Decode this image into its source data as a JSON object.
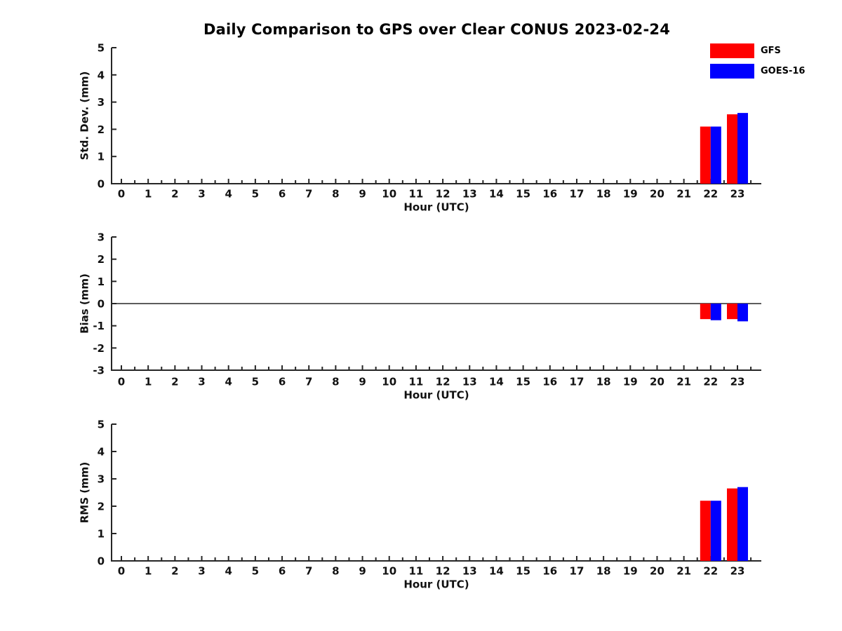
{
  "title": "Daily Comparison to GPS over Clear CONUS 2023-02-24",
  "legend": {
    "items": [
      {
        "label": "GFS",
        "color": "#ff0000"
      },
      {
        "label": "GOES-16",
        "color": "#0000ff"
      }
    ]
  },
  "colors": {
    "gfs": "#ff0000",
    "goes16": "#0000ff",
    "axis": "#262626",
    "text": "#111111"
  },
  "chart_data": [
    {
      "type": "bar",
      "name": "std-dev",
      "ylabel": "Std. Dev. (mm)",
      "xlabel": "Hour (UTC)",
      "ylim": [
        0,
        5
      ],
      "yticks": [
        0,
        1,
        2,
        3,
        4,
        5
      ],
      "grid": false,
      "zero_line": false,
      "legend_position": "top-right-outside",
      "categories": [
        0,
        1,
        2,
        3,
        4,
        5,
        6,
        7,
        8,
        9,
        10,
        11,
        12,
        13,
        14,
        15,
        16,
        17,
        18,
        19,
        20,
        21,
        22,
        23
      ],
      "series": [
        {
          "name": "GFS",
          "color": "#ff0000",
          "values": [
            null,
            null,
            null,
            null,
            null,
            null,
            null,
            null,
            null,
            null,
            null,
            null,
            null,
            null,
            null,
            null,
            null,
            null,
            null,
            null,
            null,
            null,
            2.1,
            2.55
          ]
        },
        {
          "name": "GOES-16",
          "color": "#0000ff",
          "values": [
            null,
            null,
            null,
            null,
            null,
            null,
            null,
            null,
            null,
            null,
            null,
            null,
            null,
            null,
            null,
            null,
            null,
            null,
            null,
            null,
            null,
            null,
            2.1,
            2.6
          ]
        }
      ]
    },
    {
      "type": "bar",
      "name": "bias",
      "ylabel": "Bias (mm)",
      "xlabel": "Hour (UTC)",
      "ylim": [
        -3,
        3
      ],
      "yticks": [
        -3,
        -2,
        -1,
        0,
        1,
        2,
        3
      ],
      "grid": false,
      "zero_line": true,
      "legend_position": "none",
      "categories": [
        0,
        1,
        2,
        3,
        4,
        5,
        6,
        7,
        8,
        9,
        10,
        11,
        12,
        13,
        14,
        15,
        16,
        17,
        18,
        19,
        20,
        21,
        22,
        23
      ],
      "series": [
        {
          "name": "GFS",
          "color": "#ff0000",
          "values": [
            null,
            null,
            null,
            null,
            null,
            null,
            null,
            null,
            null,
            null,
            null,
            null,
            null,
            null,
            null,
            null,
            null,
            null,
            null,
            null,
            null,
            null,
            -0.7,
            -0.7
          ]
        },
        {
          "name": "GOES-16",
          "color": "#0000ff",
          "values": [
            null,
            null,
            null,
            null,
            null,
            null,
            null,
            null,
            null,
            null,
            null,
            null,
            null,
            null,
            null,
            null,
            null,
            null,
            null,
            null,
            null,
            null,
            -0.75,
            -0.8
          ]
        }
      ]
    },
    {
      "type": "bar",
      "name": "rms",
      "ylabel": "RMS (mm)",
      "xlabel": "Hour (UTC)",
      "ylim": [
        0,
        5
      ],
      "yticks": [
        0,
        1,
        2,
        3,
        4,
        5
      ],
      "grid": false,
      "zero_line": false,
      "legend_position": "none",
      "categories": [
        0,
        1,
        2,
        3,
        4,
        5,
        6,
        7,
        8,
        9,
        10,
        11,
        12,
        13,
        14,
        15,
        16,
        17,
        18,
        19,
        20,
        21,
        22,
        23
      ],
      "series": [
        {
          "name": "GFS",
          "color": "#ff0000",
          "values": [
            null,
            null,
            null,
            null,
            null,
            null,
            null,
            null,
            null,
            null,
            null,
            null,
            null,
            null,
            null,
            null,
            null,
            null,
            null,
            null,
            null,
            null,
            2.2,
            2.65
          ]
        },
        {
          "name": "GOES-16",
          "color": "#0000ff",
          "values": [
            null,
            null,
            null,
            null,
            null,
            null,
            null,
            null,
            null,
            null,
            null,
            null,
            null,
            null,
            null,
            null,
            null,
            null,
            null,
            null,
            null,
            null,
            2.2,
            2.7
          ]
        }
      ]
    }
  ]
}
